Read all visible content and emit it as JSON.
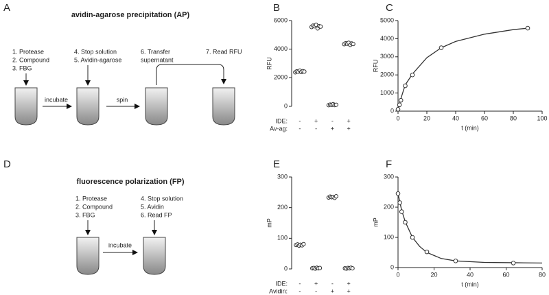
{
  "panel_labels": [
    "A",
    "B",
    "C",
    "D",
    "E",
    "F"
  ],
  "diagrams": [
    {
      "title": "avidin-agarose precipitation (AP)",
      "step_groups": [
        [
          "1. Protease",
          "2. Compound",
          "3. FBG"
        ],
        [
          "4. Stop solution",
          "5. Avidin-agarose"
        ],
        [
          "6. Transfer",
          "supernatant"
        ],
        [
          "7. Read RFU"
        ]
      ],
      "actions": [
        "incubate",
        "spin"
      ]
    },
    {
      "title": "fluorescence polarization (FP)",
      "step_groups": [
        [
          "1. Protease",
          "2. Compound",
          "3. FBG"
        ],
        [
          "4. Stop solution",
          "5. Avidin",
          "6. Read FP"
        ]
      ],
      "actions": [
        "incubate"
      ]
    }
  ],
  "chart_data": [
    {
      "type": "dot",
      "ylabel": "RFU",
      "ylim": [
        0,
        6000
      ],
      "yticks": [
        0,
        2000,
        4000,
        6000
      ],
      "color": "#333333",
      "conditions": [
        {
          "name": "IDE:",
          "values": [
            "-",
            "+",
            "-",
            "+"
          ]
        },
        {
          "name": "Av-ag:",
          "values": [
            "-",
            "-",
            "+",
            "+"
          ]
        }
      ],
      "groups": [
        [
          2380,
          2450,
          2420,
          2500,
          2400,
          2460,
          2430
        ],
        [
          5550,
          5650,
          5600,
          5700,
          5450,
          5620,
          5580
        ],
        [
          80,
          120,
          100,
          150,
          90,
          110
        ],
        [
          4350,
          4420,
          4380,
          4450,
          4300,
          4400,
          4360
        ]
      ]
    },
    {
      "type": "scatter",
      "xlabel": "t (min)",
      "ylabel": "RFU",
      "color": "#333333",
      "xlim": [
        0,
        100
      ],
      "xticks": [
        0,
        20,
        40,
        60,
        80,
        100
      ],
      "ylim": [
        0,
        5000
      ],
      "yticks": [
        0,
        1000,
        2000,
        3000,
        4000,
        5000
      ],
      "x": [
        0,
        1,
        2,
        5,
        10,
        30,
        90
      ],
      "y": [
        100,
        350,
        600,
        1400,
        2000,
        3500,
        4580
      ],
      "fit": {
        "x": [
          0,
          2,
          5,
          10,
          20,
          30,
          40,
          60,
          80,
          90
        ],
        "y": [
          0,
          700,
          1450,
          2050,
          2950,
          3500,
          3850,
          4250,
          4500,
          4580
        ]
      }
    },
    {
      "type": "dot",
      "ylabel": "mP",
      "ylim": [
        0,
        300
      ],
      "yticks": [
        0,
        100,
        200,
        300
      ],
      "color": "#333333",
      "conditions": [
        {
          "name": "IDE:",
          "values": [
            "-",
            "+",
            "-",
            "+"
          ]
        },
        {
          "name": "Avidin:",
          "values": [
            "-",
            "-",
            "+",
            "+"
          ]
        }
      ],
      "groups": [
        [
          78,
          80,
          76,
          79,
          77,
          81
        ],
        [
          2,
          3,
          1,
          4,
          2,
          3
        ],
        [
          233,
          236,
          234,
          235,
          232,
          237
        ],
        [
          2,
          1,
          3,
          2,
          4,
          2
        ]
      ]
    },
    {
      "type": "scatter",
      "xlabel": "t (min)",
      "ylabel": "mP",
      "color": "#333333",
      "xlim": [
        0,
        80
      ],
      "xticks": [
        0,
        20,
        40,
        60,
        80
      ],
      "ylim": [
        0,
        300
      ],
      "yticks": [
        0,
        100,
        200,
        300
      ],
      "x": [
        0,
        1,
        2,
        4,
        8,
        16,
        32,
        64
      ],
      "y": [
        245,
        215,
        185,
        150,
        100,
        52,
        22,
        15
      ],
      "fit": {
        "x": [
          0,
          2,
          4,
          8,
          12,
          16,
          24,
          32,
          48,
          64,
          80
        ],
        "y": [
          245,
          190,
          152,
          100,
          70,
          50,
          30,
          22,
          17,
          16,
          15
        ]
      }
    }
  ]
}
